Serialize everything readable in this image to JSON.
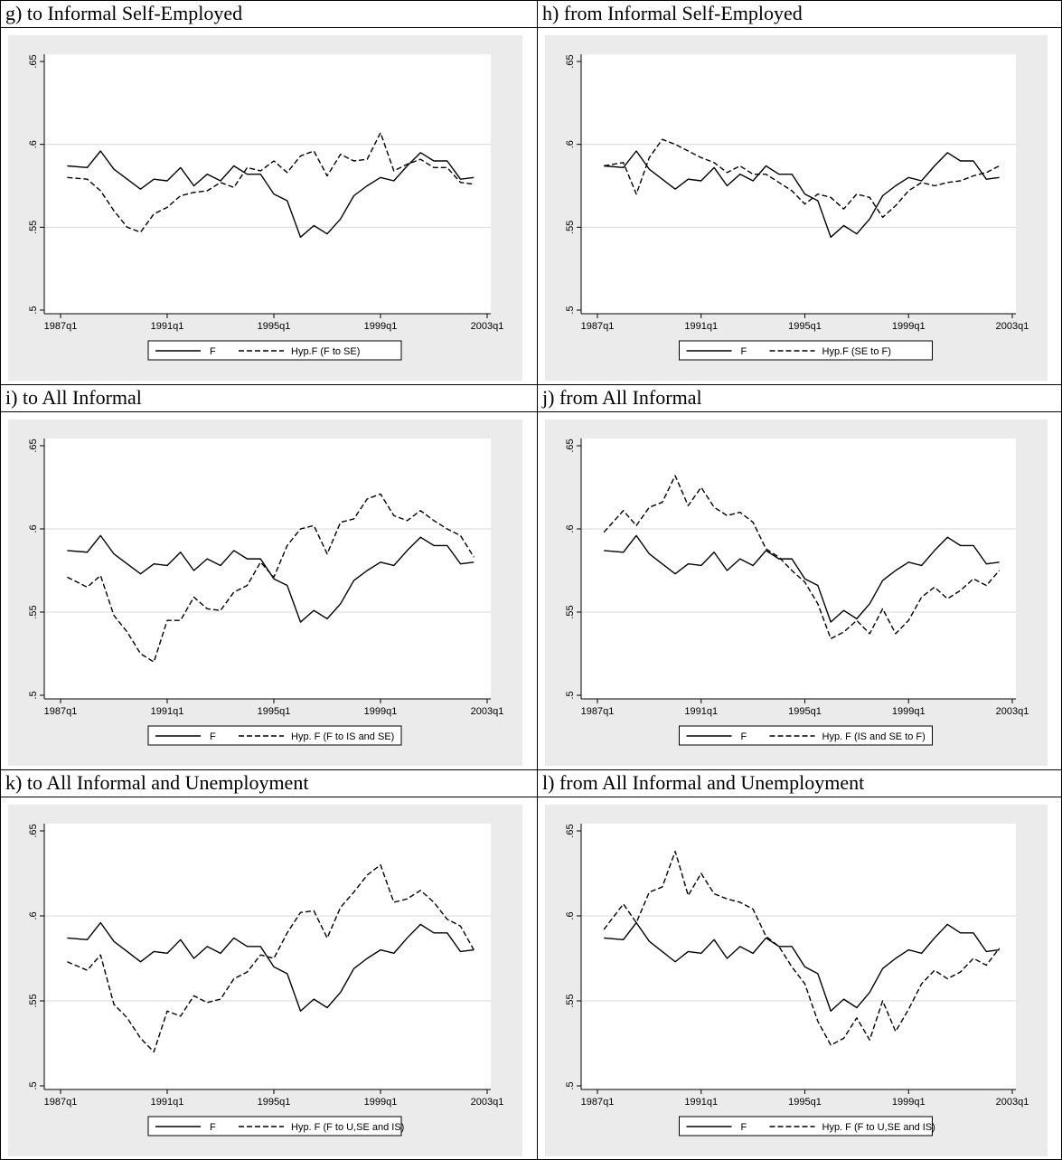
{
  "colors": {
    "plot_bg": "#ebebeb",
    "inner_bg": "#ffffff",
    "grid": "#d8d8d8",
    "line": "#000000"
  },
  "panels": [
    {
      "title": "g) to Informal Self-Employed",
      "legend": [
        "F",
        "Hyp.F (F to SE)"
      ]
    },
    {
      "title": "h) from Informal Self-Employed",
      "legend": [
        "F",
        "Hyp.F (SE to F)"
      ]
    },
    {
      "title": "i) to All Informal",
      "legend": [
        "F",
        "Hyp. F (F to IS and SE)"
      ]
    },
    {
      "title": "j) from All Informal",
      "legend": [
        "F",
        "Hyp. F (IS and SE to F)"
      ]
    },
    {
      "title": "k) to All Informal and Unemployment",
      "legend": [
        "F",
        "Hyp. F (F to U,SE and IS)"
      ]
    },
    {
      "title": "l) from All Informal and Unemployment",
      "legend": [
        "F",
        "Hyp. F (F to U,SE and IS)"
      ]
    }
  ],
  "chart_data": [
    {
      "type": "line",
      "title": "g) to Informal Self-Employed",
      "x_ticks": [
        "1987q1",
        "1991q1",
        "1995q1",
        "1999q1",
        "2003q1"
      ],
      "y_ticks": [
        ".5",
        ".55",
        ".6",
        ".65"
      ],
      "ylim": [
        0.5,
        0.65
      ],
      "xlim": [
        "1987q1",
        "2003q1"
      ],
      "x": [
        "1987q2",
        "1988q1",
        "1988q3",
        "1989q1",
        "1989q3",
        "1990q1",
        "1990q3",
        "1991q1",
        "1991q3",
        "1992q1",
        "1992q3",
        "1993q1",
        "1993q3",
        "1994q1",
        "1994q3",
        "1995q1",
        "1995q3",
        "1996q1",
        "1996q3",
        "1997q1",
        "1997q3",
        "1998q1",
        "1998q3",
        "1999q1",
        "1999q3",
        "2000q1",
        "2000q3",
        "2001q1",
        "2001q3",
        "2002q1",
        "2002q3"
      ],
      "series": [
        {
          "name": "F",
          "style": "solid",
          "values": [
            0.587,
            0.586,
            0.596,
            0.585,
            0.579,
            0.573,
            0.579,
            0.578,
            0.586,
            0.575,
            0.582,
            0.578,
            0.587,
            0.582,
            0.582,
            0.57,
            0.566,
            0.544,
            0.551,
            0.546,
            0.555,
            0.569,
            0.575,
            0.58,
            0.578,
            0.587,
            0.595,
            0.59,
            0.59,
            0.579,
            0.58
          ]
        },
        {
          "name": "Hyp.F (F to SE)",
          "style": "dashed",
          "values": [
            0.58,
            0.579,
            0.572,
            0.56,
            0.55,
            0.547,
            0.558,
            0.562,
            0.569,
            0.571,
            0.572,
            0.577,
            0.574,
            0.586,
            0.584,
            0.59,
            0.583,
            0.593,
            0.596,
            0.581,
            0.594,
            0.59,
            0.591,
            0.607,
            0.584,
            0.588,
            0.591,
            0.586,
            0.586,
            0.577,
            0.576
          ]
        }
      ]
    },
    {
      "type": "line",
      "title": "h) from Informal Self-Employed",
      "x_ticks": [
        "1987q1",
        "1991q1",
        "1995q1",
        "1999q1",
        "2003q1"
      ],
      "y_ticks": [
        ".5",
        ".55",
        ".6",
        ".65"
      ],
      "ylim": [
        0.5,
        0.65
      ],
      "xlim": [
        "1987q1",
        "2003q1"
      ],
      "x": [
        "1987q2",
        "1988q1",
        "1988q3",
        "1989q1",
        "1989q3",
        "1990q1",
        "1990q3",
        "1991q1",
        "1991q3",
        "1992q1",
        "1992q3",
        "1993q1",
        "1993q3",
        "1994q1",
        "1994q3",
        "1995q1",
        "1995q3",
        "1996q1",
        "1996q3",
        "1997q1",
        "1997q3",
        "1998q1",
        "1998q3",
        "1999q1",
        "1999q3",
        "2000q1",
        "2000q3",
        "2001q1",
        "2001q3",
        "2002q1",
        "2002q3"
      ],
      "series": [
        {
          "name": "F",
          "style": "solid",
          "values": [
            0.587,
            0.586,
            0.596,
            0.585,
            0.579,
            0.573,
            0.579,
            0.578,
            0.586,
            0.575,
            0.582,
            0.578,
            0.587,
            0.582,
            0.582,
            0.57,
            0.566,
            0.544,
            0.551,
            0.546,
            0.555,
            0.569,
            0.575,
            0.58,
            0.578,
            0.587,
            0.595,
            0.59,
            0.59,
            0.579,
            0.58
          ]
        },
        {
          "name": "Hyp.F (SE to F)",
          "style": "dashed",
          "values": [
            0.587,
            0.589,
            0.57,
            0.592,
            0.603,
            0.6,
            0.596,
            0.592,
            0.589,
            0.583,
            0.587,
            0.582,
            0.582,
            0.577,
            0.572,
            0.564,
            0.57,
            0.568,
            0.561,
            0.57,
            0.568,
            0.556,
            0.563,
            0.572,
            0.577,
            0.575,
            0.577,
            0.578,
            0.581,
            0.583,
            0.587
          ]
        }
      ]
    },
    {
      "type": "line",
      "title": "i) to All Informal",
      "x_ticks": [
        "1987q1",
        "1991q1",
        "1995q1",
        "1999q1",
        "2003q1"
      ],
      "y_ticks": [
        ".5",
        ".55",
        ".6",
        ".65"
      ],
      "ylim": [
        0.5,
        0.65
      ],
      "xlim": [
        "1987q1",
        "2003q1"
      ],
      "x": [
        "1987q2",
        "1988q1",
        "1988q3",
        "1989q1",
        "1989q3",
        "1990q1",
        "1990q3",
        "1991q1",
        "1991q3",
        "1992q1",
        "1992q3",
        "1993q1",
        "1993q3",
        "1994q1",
        "1994q3",
        "1995q1",
        "1995q3",
        "1996q1",
        "1996q3",
        "1997q1",
        "1997q3",
        "1998q1",
        "1998q3",
        "1999q1",
        "1999q3",
        "2000q1",
        "2000q3",
        "2001q1",
        "2001q3",
        "2002q1",
        "2002q3"
      ],
      "series": [
        {
          "name": "F",
          "style": "solid",
          "values": [
            0.587,
            0.586,
            0.596,
            0.585,
            0.579,
            0.573,
            0.579,
            0.578,
            0.586,
            0.575,
            0.582,
            0.578,
            0.587,
            0.582,
            0.582,
            0.57,
            0.566,
            0.544,
            0.551,
            0.546,
            0.555,
            0.569,
            0.575,
            0.58,
            0.578,
            0.587,
            0.595,
            0.59,
            0.59,
            0.579,
            0.58
          ]
        },
        {
          "name": "Hyp. F (F to IS and SE)",
          "style": "dashed",
          "values": [
            0.571,
            0.565,
            0.572,
            0.548,
            0.538,
            0.525,
            0.52,
            0.545,
            0.545,
            0.559,
            0.552,
            0.551,
            0.562,
            0.566,
            0.58,
            0.571,
            0.59,
            0.6,
            0.602,
            0.585,
            0.604,
            0.606,
            0.618,
            0.621,
            0.608,
            0.605,
            0.611,
            0.605,
            0.6,
            0.596,
            0.583
          ]
        }
      ]
    },
    {
      "type": "line",
      "title": "j) from All Informal",
      "x_ticks": [
        "1987q1",
        "1991q1",
        "1995q1",
        "1999q1",
        "2003q1"
      ],
      "y_ticks": [
        ".5",
        ".55",
        ".6",
        ".65"
      ],
      "ylim": [
        0.5,
        0.65
      ],
      "xlim": [
        "1987q1",
        "2003q1"
      ],
      "x": [
        "1987q2",
        "1988q1",
        "1988q3",
        "1989q1",
        "1989q3",
        "1990q1",
        "1990q3",
        "1991q1",
        "1991q3",
        "1992q1",
        "1992q3",
        "1993q1",
        "1993q3",
        "1994q1",
        "1994q3",
        "1995q1",
        "1995q3",
        "1996q1",
        "1996q3",
        "1997q1",
        "1997q3",
        "1998q1",
        "1998q3",
        "1999q1",
        "1999q3",
        "2000q1",
        "2000q3",
        "2001q1",
        "2001q3",
        "2002q1",
        "2002q3"
      ],
      "series": [
        {
          "name": "F",
          "style": "solid",
          "values": [
            0.587,
            0.586,
            0.596,
            0.585,
            0.579,
            0.573,
            0.579,
            0.578,
            0.586,
            0.575,
            0.582,
            0.578,
            0.587,
            0.582,
            0.582,
            0.57,
            0.566,
            0.544,
            0.551,
            0.546,
            0.555,
            0.569,
            0.575,
            0.58,
            0.578,
            0.587,
            0.595,
            0.59,
            0.59,
            0.579,
            0.58
          ]
        },
        {
          "name": "Hyp. F (IS and SE to F)",
          "style": "dashed",
          "values": [
            0.598,
            0.611,
            0.602,
            0.613,
            0.616,
            0.632,
            0.614,
            0.625,
            0.613,
            0.608,
            0.61,
            0.604,
            0.588,
            0.583,
            0.575,
            0.568,
            0.555,
            0.534,
            0.538,
            0.545,
            0.537,
            0.552,
            0.537,
            0.545,
            0.559,
            0.565,
            0.558,
            0.563,
            0.57,
            0.566,
            0.575
          ]
        }
      ]
    },
    {
      "type": "line",
      "title": "k) to All Informal and Unemployment",
      "x_ticks": [
        "1987q1",
        "1991q1",
        "1995q1",
        "1999q1",
        "2003q1"
      ],
      "y_ticks": [
        ".5",
        ".55",
        ".6",
        ".65"
      ],
      "ylim": [
        0.5,
        0.65
      ],
      "xlim": [
        "1987q1",
        "2003q1"
      ],
      "x": [
        "1987q2",
        "1988q1",
        "1988q3",
        "1989q1",
        "1989q3",
        "1990q1",
        "1990q3",
        "1991q1",
        "1991q3",
        "1992q1",
        "1992q3",
        "1993q1",
        "1993q3",
        "1994q1",
        "1994q3",
        "1995q1",
        "1995q3",
        "1996q1",
        "1996q3",
        "1997q1",
        "1997q3",
        "1998q1",
        "1998q3",
        "1999q1",
        "1999q3",
        "2000q1",
        "2000q3",
        "2001q1",
        "2001q3",
        "2002q1",
        "2002q3"
      ],
      "series": [
        {
          "name": "F",
          "style": "solid",
          "values": [
            0.587,
            0.586,
            0.596,
            0.585,
            0.579,
            0.573,
            0.579,
            0.578,
            0.586,
            0.575,
            0.582,
            0.578,
            0.587,
            0.582,
            0.582,
            0.57,
            0.566,
            0.544,
            0.551,
            0.546,
            0.555,
            0.569,
            0.575,
            0.58,
            0.578,
            0.587,
            0.595,
            0.59,
            0.59,
            0.579,
            0.58
          ]
        },
        {
          "name": "Hyp. F (F to U,SE and IS)",
          "style": "dashed",
          "values": [
            0.573,
            0.568,
            0.577,
            0.548,
            0.54,
            0.528,
            0.52,
            0.544,
            0.541,
            0.553,
            0.549,
            0.551,
            0.563,
            0.567,
            0.577,
            0.575,
            0.59,
            0.602,
            0.603,
            0.587,
            0.605,
            0.614,
            0.624,
            0.63,
            0.608,
            0.61,
            0.615,
            0.608,
            0.598,
            0.594,
            0.58
          ]
        }
      ]
    },
    {
      "type": "line",
      "title": "l) from All Informal and Unemployment",
      "x_ticks": [
        "1987q1",
        "1991q1",
        "1995q1",
        "1999q1",
        "2003q1"
      ],
      "y_ticks": [
        ".5",
        ".55",
        ".6",
        ".65"
      ],
      "ylim": [
        0.5,
        0.65
      ],
      "xlim": [
        "1987q1",
        "2003q1"
      ],
      "x": [
        "1987q2",
        "1988q1",
        "1988q3",
        "1989q1",
        "1989q3",
        "1990q1",
        "1990q3",
        "1991q1",
        "1991q3",
        "1992q1",
        "1992q3",
        "1993q1",
        "1993q3",
        "1994q1",
        "1994q3",
        "1995q1",
        "1995q3",
        "1996q1",
        "1996q3",
        "1997q1",
        "1997q3",
        "1998q1",
        "1998q3",
        "1999q1",
        "1999q3",
        "2000q1",
        "2000q3",
        "2001q1",
        "2001q3",
        "2002q1",
        "2002q3"
      ],
      "series": [
        {
          "name": "F",
          "style": "solid",
          "values": [
            0.587,
            0.586,
            0.596,
            0.585,
            0.579,
            0.573,
            0.579,
            0.578,
            0.586,
            0.575,
            0.582,
            0.578,
            0.587,
            0.582,
            0.582,
            0.57,
            0.566,
            0.544,
            0.551,
            0.546,
            0.555,
            0.569,
            0.575,
            0.58,
            0.578,
            0.587,
            0.595,
            0.59,
            0.59,
            0.579,
            0.58
          ]
        },
        {
          "name": "Hyp. F (F to U,SE and IS)",
          "style": "dashed",
          "values": [
            0.592,
            0.607,
            0.596,
            0.614,
            0.617,
            0.638,
            0.612,
            0.625,
            0.613,
            0.61,
            0.608,
            0.604,
            0.588,
            0.582,
            0.57,
            0.56,
            0.538,
            0.524,
            0.528,
            0.54,
            0.527,
            0.55,
            0.532,
            0.545,
            0.56,
            0.568,
            0.563,
            0.567,
            0.575,
            0.571,
            0.581
          ]
        }
      ]
    }
  ]
}
